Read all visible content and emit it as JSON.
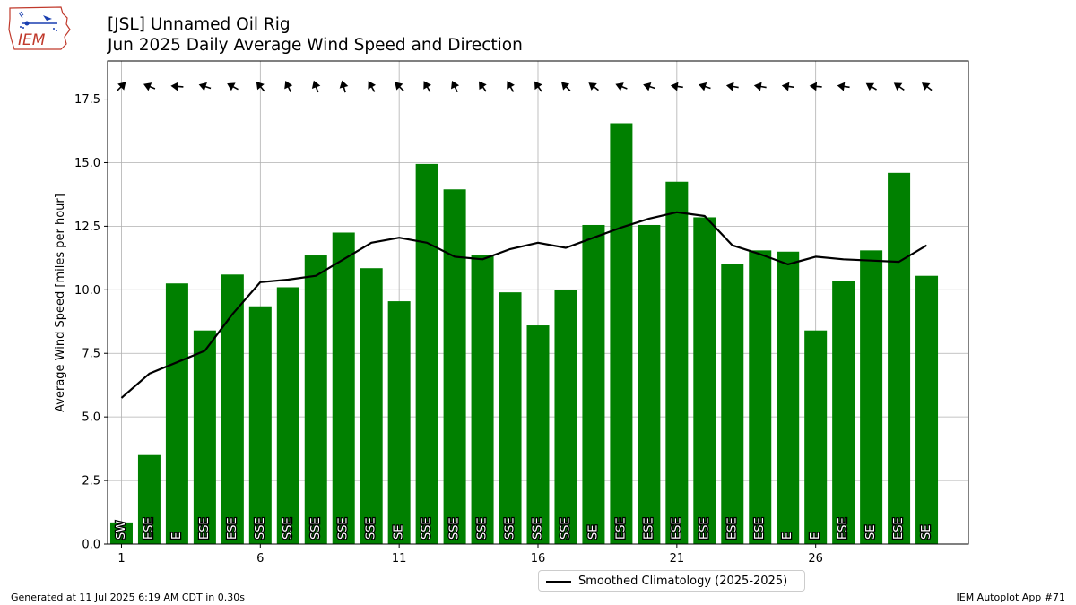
{
  "logo": {
    "icon": "iem-iowa-logo-icon",
    "text": "IEM"
  },
  "chart_data": {
    "type": "bar",
    "title": "[JSL] Unnamed Oil Rig",
    "subtitle": "Jun 2025 Daily Average Wind Speed and Direction",
    "ylabel": "Average Wind Speed [miles per hour]",
    "xlabel": "",
    "xlim": [
      0.5,
      31.5
    ],
    "ylim": [
      0,
      19
    ],
    "x_ticks": [
      1,
      6,
      11,
      16,
      21,
      26
    ],
    "y_ticks": [
      0.0,
      2.5,
      5.0,
      7.5,
      10.0,
      12.5,
      15.0,
      17.5
    ],
    "y_tick_labels": [
      "0.0",
      "2.5",
      "5.0",
      "7.5",
      "10.0",
      "12.5",
      "15.0",
      "17.5"
    ],
    "grid": true,
    "bar_color": "#008000",
    "days": [
      1,
      2,
      3,
      4,
      5,
      6,
      7,
      8,
      9,
      10,
      11,
      12,
      13,
      14,
      15,
      16,
      17,
      18,
      19,
      20,
      21,
      22,
      23,
      24,
      25,
      26,
      27,
      28,
      29,
      30
    ],
    "values": [
      0.85,
      3.5,
      10.25,
      8.4,
      10.6,
      9.35,
      10.1,
      11.35,
      12.25,
      10.85,
      9.55,
      14.95,
      13.95,
      11.35,
      9.9,
      8.6,
      10.0,
      12.55,
      16.55,
      12.55,
      14.25,
      12.85,
      11.0,
      11.55,
      11.5,
      8.4,
      10.35,
      11.55,
      14.6,
      10.55
    ],
    "direction_labels": [
      "SW",
      "ESE",
      "E",
      "ESE",
      "ESE",
      "SSE",
      "SSE",
      "SSE",
      "SSE",
      "SSE",
      "SE",
      "SSE",
      "SSE",
      "SSE",
      "SSE",
      "SSE",
      "SSE",
      "SE",
      "ESE",
      "ESE",
      "ESE",
      "ESE",
      "ESE",
      "ESE",
      "E",
      "E",
      "ESE",
      "SE",
      "ESE",
      "SE"
    ],
    "direction_deg": [
      225,
      112,
      95,
      108,
      118,
      140,
      155,
      160,
      165,
      150,
      135,
      150,
      155,
      145,
      150,
      145,
      135,
      128,
      112,
      108,
      98,
      108,
      100,
      100,
      98,
      95,
      98,
      122,
      125,
      128
    ],
    "arrow_y": 18.0,
    "series": [
      {
        "name": "Smoothed Climatology (2025-2025)",
        "type": "line",
        "color": "#000000",
        "x": [
          1,
          2,
          3,
          4,
          5,
          6,
          7,
          8,
          9,
          10,
          11,
          12,
          13,
          14,
          15,
          16,
          17,
          18,
          19,
          20,
          21,
          22,
          23,
          24,
          25,
          26,
          27,
          28,
          29,
          30
        ],
        "values": [
          5.75,
          6.7,
          7.15,
          7.6,
          9.05,
          10.3,
          10.4,
          10.55,
          11.2,
          11.85,
          12.05,
          11.85,
          11.3,
          11.2,
          11.6,
          11.85,
          11.65,
          12.05,
          12.45,
          12.8,
          13.05,
          12.9,
          11.75,
          11.4,
          11.0,
          11.3,
          11.2,
          11.15,
          11.1,
          11.75
        ]
      }
    ],
    "legend_position": "bottom-center"
  },
  "legend": {
    "label": "Smoothed Climatology (2025-2025)"
  },
  "footer": {
    "left": "Generated at 11 Jul 2025 6:19 AM CDT in 0.30s",
    "right": "IEM Autoplot App #71"
  }
}
